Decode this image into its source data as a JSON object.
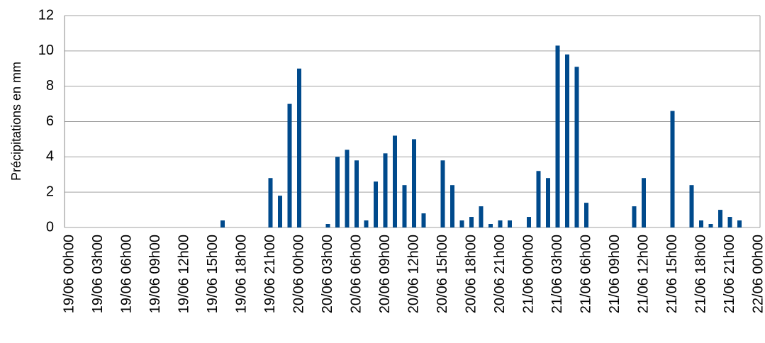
{
  "chart_data": {
    "type": "bar",
    "ylabel": "Précipitations en mm",
    "categories": [
      "19/06 00h00",
      null,
      null,
      "19/06 03h00",
      null,
      null,
      "19/06 06h00",
      null,
      null,
      "19/06 09h00",
      null,
      null,
      "19/06 12h00",
      null,
      null,
      "19/06 15h00",
      null,
      null,
      "19/06 18h00",
      null,
      null,
      "19/06 21h00",
      null,
      null,
      "20/06 00h00",
      null,
      null,
      "20/06 03h00",
      null,
      null,
      "20/06 06h00",
      null,
      null,
      "20/06 09h00",
      null,
      null,
      "20/06 12h00",
      null,
      null,
      "20/06 15h00",
      null,
      null,
      "20/06 18h00",
      null,
      null,
      "20/06 21h00",
      null,
      null,
      "21/06 00h00",
      null,
      null,
      "21/06 03h00",
      null,
      null,
      "21/06 06h00",
      null,
      null,
      "21/06 09h00",
      null,
      null,
      "21/06 12h00",
      null,
      null,
      "21/06 15h00",
      null,
      null,
      "21/06 18h00",
      null,
      null,
      "21/06 21h00",
      null,
      null,
      "22/06 00h00"
    ],
    "values": [
      0,
      0,
      0,
      0,
      0,
      0,
      0,
      0,
      0,
      0,
      0,
      0,
      0,
      0,
      0,
      0,
      0.4,
      0,
      0,
      0,
      0,
      2.8,
      1.8,
      7,
      9,
      0,
      0,
      0.2,
      4,
      4.4,
      3.8,
      0.4,
      2.6,
      4.2,
      5.2,
      2.4,
      5,
      0.8,
      0,
      3.8,
      2.4,
      0.4,
      0.6,
      1.2,
      0.2,
      0.4,
      0.4,
      0,
      0.6,
      3.2,
      2.8,
      10.3,
      9.8,
      9.1,
      1.4,
      0,
      0,
      0,
      0,
      1.2,
      2.8,
      0,
      0,
      6.6,
      0,
      2.4,
      0.4,
      0.2,
      1,
      0.6,
      0.4,
      0,
      0
    ],
    "color": "#004a8c",
    "ylim": [
      0,
      12
    ],
    "yticks": [
      0,
      2,
      4,
      6,
      8,
      10,
      12
    ],
    "grid": true
  }
}
